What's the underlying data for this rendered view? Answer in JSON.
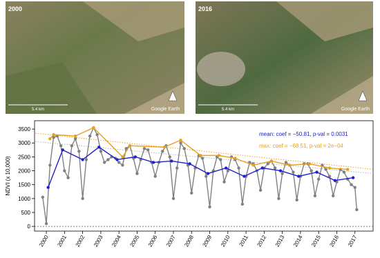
{
  "images": [
    {
      "year": "2000",
      "scale": "5.4 km",
      "credit": "Google Earth"
    },
    {
      "year": "2016",
      "scale": "5.4 km",
      "credit": "Google Earth"
    }
  ],
  "chart_data": {
    "type": "line",
    "y_label": "NDVI (x 10,000)",
    "xlim": [
      1999.35,
      2018.0
    ],
    "xticks": [
      2000,
      2001,
      2002,
      2003,
      2004,
      2005,
      2006,
      2007,
      2008,
      2009,
      2010,
      2011,
      2012,
      2013,
      2014,
      2015,
      2016,
      2017
    ],
    "ylim": [
      -170,
      3800
    ],
    "yticks": [
      0,
      500,
      1000,
      1500,
      2000,
      2500,
      3000,
      3500
    ],
    "hline": 0,
    "annotations": [
      {
        "text": "mean: coef = −50.81, p-val = 0.0031",
        "color": "#2020c8"
      },
      {
        "text": "max: coef = −68.51, p-val = 2e−04",
        "color": "#e8a020"
      }
    ],
    "series": [
      {
        "color": "#b0b0b0",
        "dash": "dotted",
        "markers": false,
        "x": [
          1999.4,
          2018.0
        ],
        "values": [
          3050,
          1900
        ]
      },
      {
        "color": "#e8a020",
        "dash": "dotted",
        "markers": false,
        "x": [
          1999.4,
          2018.0
        ],
        "values": [
          3350,
          2050
        ]
      },
      {
        "color": "#808080",
        "markers": true,
        "x": [
          1999.8,
          2000.0,
          2000.2,
          2000.4,
          2000.6,
          2000.8,
          2001.0,
          2001.2,
          2001.4,
          2001.6,
          2001.8,
          2002.0,
          2002.2,
          2002.4,
          2002.6,
          2002.8,
          2003.0,
          2003.2,
          2003.4,
          2003.6,
          2003.8,
          2004.0,
          2004.2,
          2004.4,
          2004.6,
          2004.8,
          2005.0,
          2005.2,
          2005.4,
          2005.6,
          2005.8,
          2006.0,
          2006.2,
          2006.4,
          2006.6,
          2006.8,
          2007.0,
          2007.2,
          2007.4,
          2007.6,
          2007.8,
          2008.0,
          2008.2,
          2008.4,
          2008.6,
          2008.8,
          2009.0,
          2009.2,
          2009.4,
          2009.6,
          2009.8,
          2010.0,
          2010.2,
          2010.4,
          2010.6,
          2010.8,
          2011.0,
          2011.2,
          2011.4,
          2011.6,
          2011.8,
          2012.0,
          2012.2,
          2012.4,
          2012.6,
          2012.8,
          2013.0,
          2013.2,
          2013.4,
          2013.6,
          2013.8,
          2014.0,
          2014.2,
          2014.4,
          2014.6,
          2014.8,
          2015.0,
          2015.2,
          2015.4,
          2015.6,
          2015.8,
          2016.0,
          2016.2,
          2016.4,
          2016.6,
          2016.8,
          2017.0,
          2017.1
        ],
        "values": [
          1050,
          100,
          2200,
          3200,
          3250,
          2900,
          2000,
          1750,
          2900,
          3150,
          2700,
          1000,
          2400,
          3250,
          3550,
          3300,
          2700,
          2300,
          2400,
          2500,
          2450,
          2300,
          2200,
          2800,
          2900,
          2450,
          1900,
          2400,
          2800,
          2750,
          2300,
          1800,
          2300,
          2700,
          2900,
          2500,
          1000,
          2100,
          3000,
          2800,
          2200,
          1200,
          2100,
          2550,
          2450,
          1800,
          700,
          2000,
          2500,
          2400,
          1600,
          2000,
          2500,
          2400,
          2100,
          800,
          1800,
          2300,
          2250,
          2000,
          1300,
          2100,
          2250,
          2350,
          2100,
          1000,
          1900,
          2300,
          2200,
          1950,
          950,
          1800,
          2250,
          2250,
          2000,
          1100,
          1700,
          2200,
          2050,
          1800,
          1100,
          1600,
          2050,
          1950,
          1700,
          1500,
          1400,
          600
        ]
      },
      {
        "color": "#e8a020",
        "markers": true,
        "x": [
          2000.2,
          2000.4,
          2001.6,
          2002.6,
          2004.2,
          2004.6,
          2006.5,
          2007.4,
          2008.5,
          2009.5,
          2010.4,
          2011.4,
          2012.4,
          2013.4,
          2014.5,
          2015.6,
          2016.6
        ],
        "values": [
          3150,
          3300,
          3250,
          3550,
          2500,
          2900,
          2850,
          3100,
          2550,
          2550,
          2450,
          2200,
          2350,
          2200,
          2250,
          2100,
          2050
        ]
      },
      {
        "color": "#2020c8",
        "markers": true,
        "x": [
          2000.1,
          2000.9,
          2002.0,
          2002.9,
          2003.9,
          2004.9,
          2005.9,
          2006.9,
          2007.9,
          2008.9,
          2009.9,
          2010.9,
          2011.9,
          2012.9,
          2013.9,
          2014.9,
          2015.9,
          2016.9
        ],
        "values": [
          1400,
          2750,
          2400,
          2850,
          2400,
          2500,
          2300,
          2350,
          2250,
          1900,
          2100,
          1800,
          2100,
          2000,
          1800,
          1950,
          1650,
          1750
        ]
      }
    ]
  }
}
